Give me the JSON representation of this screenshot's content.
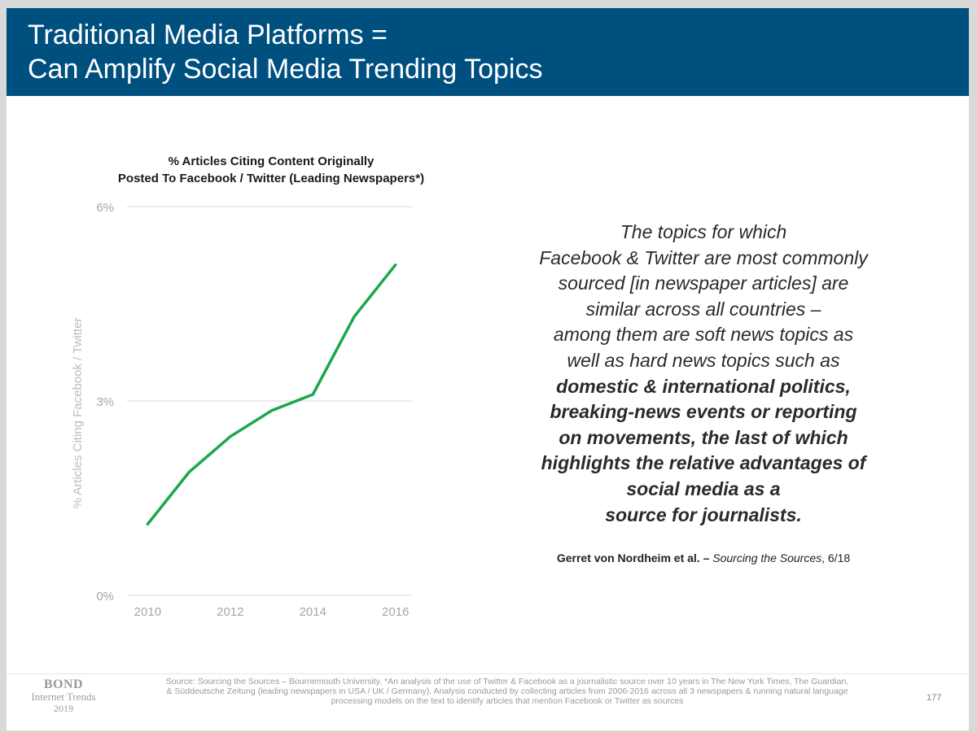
{
  "header": {
    "title_line1": "Traditional Media Platforms =",
    "title_line2": "Can Amplify Social Media Trending Topics",
    "background": "#00507f"
  },
  "chart_data": {
    "type": "line",
    "title": "% Articles Citing Content Originally Posted To Facebook / Twitter (Leading Newspapers*)",
    "title_lines": [
      "% Articles Citing Content Originally",
      "Posted To Facebook / Twitter (Leading Newspapers*)"
    ],
    "ylabel": "% Articles Citing Facebook / Twitter",
    "xlabel": "",
    "x": [
      2010,
      2011,
      2012,
      2013,
      2014,
      2015,
      2016
    ],
    "x_tick_labels": [
      "2010",
      "2012",
      "2014",
      "2016"
    ],
    "y_ticks": [
      0,
      3,
      6
    ],
    "y_tick_labels": [
      "0%",
      "3%",
      "6%"
    ],
    "ylim": [
      0,
      6
    ],
    "xlim": [
      2009.5,
      2016.4
    ],
    "grid": true,
    "series": [
      {
        "values": [
          1.1,
          1.9,
          2.45,
          2.85,
          3.1,
          4.3,
          5.1
        ],
        "color": "#1aa84b"
      }
    ]
  },
  "quote": {
    "lines": [
      "The topics for which",
      "Facebook & Twitter are most commonly",
      "sourced [in newspaper articles] are",
      "similar across all countries –",
      "among them are soft news topics as",
      "well as hard news topics such as"
    ],
    "bold_lines": [
      "domestic & international politics,",
      "breaking-news events or reporting",
      "on movements, the last of which",
      "highlights the relative advantages of",
      "social media as a",
      "source for journalists."
    ]
  },
  "attribution": {
    "author": "Gerret von Nordheim et al. –",
    "work": "Sourcing the Sources",
    "date": ", 6/18"
  },
  "footer": {
    "bond_name": "BOND",
    "bond_sub": "Internet Trends",
    "bond_year": "2019",
    "source_lines": [
      "Source: Sourcing the Sources – Bournemouth University.  *An analysis of the use of Twitter & Facebook as a journalistic source over 10 years in The New York Times, The Guardian,",
      "& Süddeutsche Zeitung (leading newspapers in USA / UK / Germany).  Analysis conducted by collecting articles from 2006-2016 across all 3 newspapers & running natural language",
      "processing models on the text to identify articles that mention Facebook or Twitter as sources"
    ],
    "page_number": "177"
  }
}
